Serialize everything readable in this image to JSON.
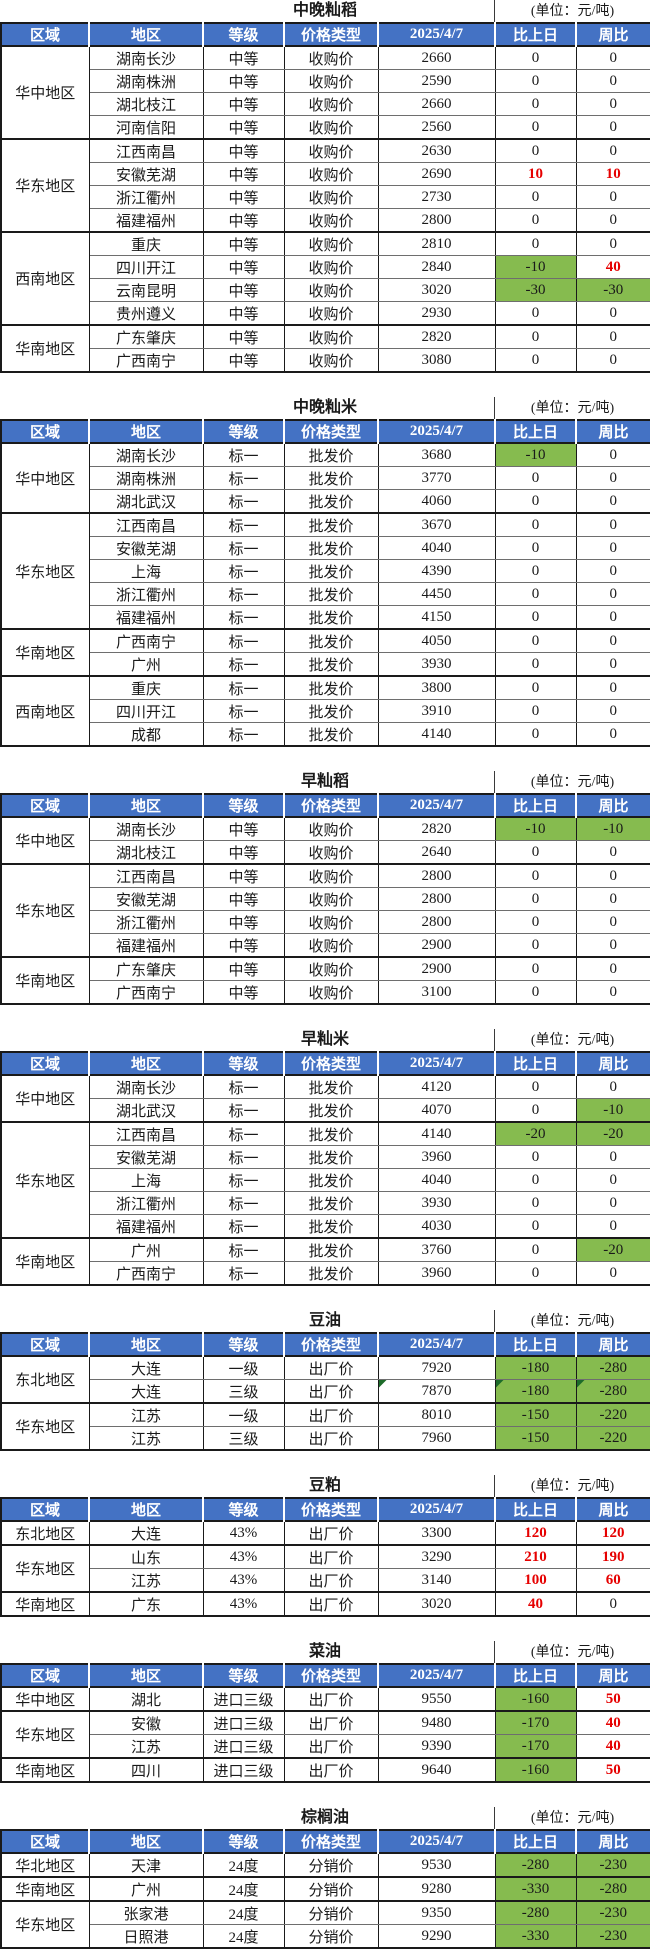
{
  "unit_label": "(单位：元/吨)",
  "columns": [
    "区域",
    "地区",
    "等级",
    "价格类型",
    "2025/4/7",
    "比上日",
    "周比"
  ],
  "colors": {
    "header_bg": "#4472c4",
    "header_text": "#ffffff",
    "positive_red": "#e60000",
    "negative_green_bg": "#86bb4f",
    "comment_triangle": "#1d6b2a"
  },
  "tables": [
    {
      "title": "中晚籼稻",
      "groups": [
        {
          "region": "华中地区",
          "rows": [
            {
              "area": "湖南长沙",
              "grade": "中等",
              "type": "收购价",
              "price": "2660",
              "day": "0",
              "week": "0"
            },
            {
              "area": "湖南株洲",
              "grade": "中等",
              "type": "收购价",
              "price": "2590",
              "day": "0",
              "week": "0"
            },
            {
              "area": "湖北枝江",
              "grade": "中等",
              "type": "收购价",
              "price": "2660",
              "day": "0",
              "week": "0"
            },
            {
              "area": "河南信阳",
              "grade": "中等",
              "type": "收购价",
              "price": "2560",
              "day": "0",
              "week": "0"
            }
          ]
        },
        {
          "region": "华东地区",
          "rows": [
            {
              "area": "江西南昌",
              "grade": "中等",
              "type": "收购价",
              "price": "2630",
              "day": "0",
              "week": "0"
            },
            {
              "area": "安徽芜湖",
              "grade": "中等",
              "type": "收购价",
              "price": "2690",
              "day": "10",
              "week": "10",
              "dc": "r",
              "wc": "r"
            },
            {
              "area": "浙江衢州",
              "grade": "中等",
              "type": "收购价",
              "price": "2730",
              "day": "0",
              "week": "0"
            },
            {
              "area": "福建福州",
              "grade": "中等",
              "type": "收购价",
              "price": "2800",
              "day": "0",
              "week": "0"
            }
          ]
        },
        {
          "region": "西南地区",
          "rows": [
            {
              "area": "重庆",
              "grade": "中等",
              "type": "收购价",
              "price": "2810",
              "day": "0",
              "week": "0"
            },
            {
              "area": "四川开江",
              "grade": "中等",
              "type": "收购价",
              "price": "2840",
              "day": "-10",
              "week": "40",
              "dc": "g",
              "wc": "r"
            },
            {
              "area": "云南昆明",
              "grade": "中等",
              "type": "收购价",
              "price": "3020",
              "day": "-30",
              "week": "-30",
              "dc": "g",
              "wc": "g"
            },
            {
              "area": "贵州遵义",
              "grade": "中等",
              "type": "收购价",
              "price": "2930",
              "day": "0",
              "week": "0"
            }
          ]
        },
        {
          "region": "华南地区",
          "rows": [
            {
              "area": "广东肇庆",
              "grade": "中等",
              "type": "收购价",
              "price": "2820",
              "day": "0",
              "week": "0"
            },
            {
              "area": "广西南宁",
              "grade": "中等",
              "type": "收购价",
              "price": "3080",
              "day": "0",
              "week": "0"
            }
          ]
        }
      ]
    },
    {
      "title": "中晚籼米",
      "groups": [
        {
          "region": "华中地区",
          "rows": [
            {
              "area": "湖南长沙",
              "grade": "标一",
              "type": "批发价",
              "price": "3680",
              "day": "-10",
              "week": "0",
              "dc": "g"
            },
            {
              "area": "湖南株洲",
              "grade": "标一",
              "type": "批发价",
              "price": "3770",
              "day": "0",
              "week": "0"
            },
            {
              "area": "湖北武汉",
              "grade": "标一",
              "type": "批发价",
              "price": "4060",
              "day": "0",
              "week": "0"
            }
          ]
        },
        {
          "region": "华东地区",
          "rows": [
            {
              "area": "江西南昌",
              "grade": "标一",
              "type": "批发价",
              "price": "3670",
              "day": "0",
              "week": "0"
            },
            {
              "area": "安徽芜湖",
              "grade": "标一",
              "type": "批发价",
              "price": "4040",
              "day": "0",
              "week": "0"
            },
            {
              "area": "上海",
              "grade": "标一",
              "type": "批发价",
              "price": "4390",
              "day": "0",
              "week": "0"
            },
            {
              "area": "浙江衢州",
              "grade": "标一",
              "type": "批发价",
              "price": "4450",
              "day": "0",
              "week": "0"
            },
            {
              "area": "福建福州",
              "grade": "标一",
              "type": "批发价",
              "price": "4150",
              "day": "0",
              "week": "0"
            }
          ]
        },
        {
          "region": "华南地区",
          "rows": [
            {
              "area": "广西南宁",
              "grade": "标一",
              "type": "批发价",
              "price": "4050",
              "day": "0",
              "week": "0"
            },
            {
              "area": "广州",
              "grade": "标一",
              "type": "批发价",
              "price": "3930",
              "day": "0",
              "week": "0"
            }
          ]
        },
        {
          "region": "西南地区",
          "rows": [
            {
              "area": "重庆",
              "grade": "标一",
              "type": "批发价",
              "price": "3800",
              "day": "0",
              "week": "0"
            },
            {
              "area": "四川开江",
              "grade": "标一",
              "type": "批发价",
              "price": "3910",
              "day": "0",
              "week": "0"
            },
            {
              "area": "成都",
              "grade": "标一",
              "type": "批发价",
              "price": "4140",
              "day": "0",
              "week": "0"
            }
          ]
        }
      ]
    },
    {
      "title": "早籼稻",
      "groups": [
        {
          "region": "华中地区",
          "rows": [
            {
              "area": "湖南长沙",
              "grade": "中等",
              "type": "收购价",
              "price": "2820",
              "day": "-10",
              "week": "-10",
              "dc": "g",
              "wc": "g"
            },
            {
              "area": "湖北枝江",
              "grade": "中等",
              "type": "收购价",
              "price": "2640",
              "day": "0",
              "week": "0"
            }
          ]
        },
        {
          "region": "华东地区",
          "rows": [
            {
              "area": "江西南昌",
              "grade": "中等",
              "type": "收购价",
              "price": "2800",
              "day": "0",
              "week": "0"
            },
            {
              "area": "安徽芜湖",
              "grade": "中等",
              "type": "收购价",
              "price": "2800",
              "day": "0",
              "week": "0"
            },
            {
              "area": "浙江衢州",
              "grade": "中等",
              "type": "收购价",
              "price": "2800",
              "day": "0",
              "week": "0"
            },
            {
              "area": "福建福州",
              "grade": "中等",
              "type": "收购价",
              "price": "2900",
              "day": "0",
              "week": "0"
            }
          ]
        },
        {
          "region": "华南地区",
          "rows": [
            {
              "area": "广东肇庆",
              "grade": "中等",
              "type": "收购价",
              "price": "2900",
              "day": "0",
              "week": "0"
            },
            {
              "area": "广西南宁",
              "grade": "中等",
              "type": "收购价",
              "price": "3100",
              "day": "0",
              "week": "0"
            }
          ]
        }
      ]
    },
    {
      "title": "早籼米",
      "groups": [
        {
          "region": "华中地区",
          "rows": [
            {
              "area": "湖南长沙",
              "grade": "标一",
              "type": "批发价",
              "price": "4120",
              "day": "0",
              "week": "0"
            },
            {
              "area": "湖北武汉",
              "grade": "标一",
              "type": "批发价",
              "price": "4070",
              "day": "0",
              "week": "-10",
              "wc": "g"
            }
          ]
        },
        {
          "region": "华东地区",
          "rows": [
            {
              "area": "江西南昌",
              "grade": "标一",
              "type": "批发价",
              "price": "4140",
              "day": "-20",
              "week": "-20",
              "dc": "g",
              "wc": "g"
            },
            {
              "area": "安徽芜湖",
              "grade": "标一",
              "type": "批发价",
              "price": "3960",
              "day": "0",
              "week": "0"
            },
            {
              "area": "上海",
              "grade": "标一",
              "type": "批发价",
              "price": "4040",
              "day": "0",
              "week": "0"
            },
            {
              "area": "浙江衢州",
              "grade": "标一",
              "type": "批发价",
              "price": "3930",
              "day": "0",
              "week": "0"
            },
            {
              "area": "福建福州",
              "grade": "标一",
              "type": "批发价",
              "price": "4030",
              "day": "0",
              "week": "0"
            }
          ]
        },
        {
          "region": "华南地区",
          "rows": [
            {
              "area": "广州",
              "grade": "标一",
              "type": "批发价",
              "price": "3760",
              "day": "0",
              "week": "-20",
              "wc": "g"
            },
            {
              "area": "广西南宁",
              "grade": "标一",
              "type": "批发价",
              "price": "3960",
              "day": "0",
              "week": "0"
            }
          ]
        }
      ]
    },
    {
      "title": "豆油",
      "groups": [
        {
          "region": "东北地区",
          "rows": [
            {
              "area": "大连",
              "grade": "一级",
              "type": "出厂价",
              "price": "7920",
              "day": "-180",
              "week": "-280",
              "dc": "g",
              "wc": "g"
            },
            {
              "area": "大连",
              "grade": "三级",
              "type": "出厂价",
              "price": "7870",
              "day": "-180",
              "week": "-280",
              "dc": "g",
              "wc": "g",
              "tri": true
            }
          ]
        },
        {
          "region": "华东地区",
          "rows": [
            {
              "area": "江苏",
              "grade": "一级",
              "type": "出厂价",
              "price": "8010",
              "day": "-150",
              "week": "-220",
              "dc": "g",
              "wc": "g"
            },
            {
              "area": "江苏",
              "grade": "三级",
              "type": "出厂价",
              "price": "7960",
              "day": "-150",
              "week": "-220",
              "dc": "g",
              "wc": "g"
            }
          ]
        }
      ]
    },
    {
      "title": "豆粕",
      "groups": [
        {
          "region": "东北地区",
          "rows": [
            {
              "area": "大连",
              "grade": "43%",
              "type": "出厂价",
              "price": "3300",
              "day": "120",
              "week": "120",
              "dc": "r",
              "wc": "r"
            }
          ]
        },
        {
          "region": "华东地区",
          "rows": [
            {
              "area": "山东",
              "grade": "43%",
              "type": "出厂价",
              "price": "3290",
              "day": "210",
              "week": "190",
              "dc": "r",
              "wc": "r"
            },
            {
              "area": "江苏",
              "grade": "43%",
              "type": "出厂价",
              "price": "3140",
              "day": "100",
              "week": "60",
              "dc": "r",
              "wc": "r"
            }
          ]
        },
        {
          "region": "华南地区",
          "rows": [
            {
              "area": "广东",
              "grade": "43%",
              "type": "出厂价",
              "price": "3020",
              "day": "40",
              "week": "0",
              "dc": "r"
            }
          ]
        }
      ]
    },
    {
      "title": "菜油",
      "groups": [
        {
          "region": "华中地区",
          "rows": [
            {
              "area": "湖北",
              "grade": "进口三级",
              "type": "出厂价",
              "price": "9550",
              "day": "-160",
              "week": "50",
              "dc": "g",
              "wc": "r"
            }
          ]
        },
        {
          "region": "华东地区",
          "rows": [
            {
              "area": "安徽",
              "grade": "进口三级",
              "type": "出厂价",
              "price": "9480",
              "day": "-170",
              "week": "40",
              "dc": "g",
              "wc": "r"
            },
            {
              "area": "江苏",
              "grade": "进口三级",
              "type": "出厂价",
              "price": "9390",
              "day": "-170",
              "week": "40",
              "dc": "g",
              "wc": "r"
            }
          ]
        },
        {
          "region": "华南地区",
          "rows": [
            {
              "area": "四川",
              "grade": "进口三级",
              "type": "出厂价",
              "price": "9640",
              "day": "-160",
              "week": "50",
              "dc": "g",
              "wc": "r"
            }
          ]
        }
      ]
    },
    {
      "title": "棕榈油",
      "groups": [
        {
          "region": "华北地区",
          "rows": [
            {
              "area": "天津",
              "grade": "24度",
              "type": "分销价",
              "price": "9530",
              "day": "-280",
              "week": "-230",
              "dc": "g",
              "wc": "g"
            }
          ]
        },
        {
          "region": "华南地区",
          "rows": [
            {
              "area": "广州",
              "grade": "24度",
              "type": "分销价",
              "price": "9280",
              "day": "-330",
              "week": "-280",
              "dc": "g",
              "wc": "g"
            }
          ]
        },
        {
          "region": "华东地区",
          "rows": [
            {
              "area": "张家港",
              "grade": "24度",
              "type": "分销价",
              "price": "9350",
              "day": "-280",
              "week": "-230",
              "dc": "g",
              "wc": "g"
            },
            {
              "area": "日照港",
              "grade": "24度",
              "type": "分销价",
              "price": "9290",
              "day": "-330",
              "week": "-230",
              "dc": "g",
              "wc": "g"
            }
          ]
        }
      ]
    }
  ]
}
